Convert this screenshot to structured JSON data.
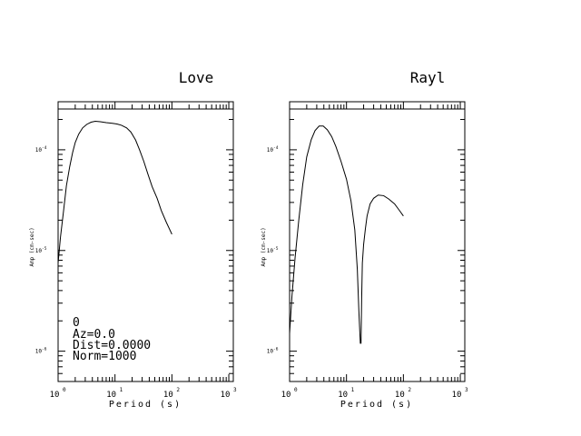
{
  "chart_data": [
    {
      "type": "line",
      "title": "Love",
      "xlabel": "Period (s)",
      "ylabel": "Amp (cm-sec)",
      "xscale": "log",
      "yscale": "log",
      "xlim": [
        1,
        1200
      ],
      "ylim": [
        5e-07,
        0.0003
      ],
      "xticks": [
        {
          "value": 1,
          "base": "10",
          "exp": "0"
        },
        {
          "value": 10,
          "base": "10",
          "exp": "1"
        },
        {
          "value": 100,
          "base": "10",
          "exp": "2"
        },
        {
          "value": 1000,
          "base": "10",
          "exp": "3"
        }
      ],
      "yticks": [
        {
          "value": 1e-06,
          "base": "10",
          "exp": "-6"
        },
        {
          "value": 1e-05,
          "base": "10",
          "exp": "-5"
        },
        {
          "value": 0.0001,
          "base": "10",
          "exp": "-4"
        }
      ],
      "annotations": [
        "0",
        "Az=0.0",
        "Dist=0.0000",
        "Norm=1000"
      ],
      "series": [
        {
          "x": [
            1.0,
            1.1,
            1.25,
            1.4,
            1.6,
            1.8,
            2.0,
            2.3,
            2.7,
            3.2,
            3.8,
            4.5,
            5.5,
            7,
            9,
            11,
            13,
            16,
            19,
            23,
            27,
            32,
            38,
            45,
            55,
            65,
            80,
            100
          ],
          "y": [
            7.5e-06,
            1.35e-05,
            2.5e-05,
            4.4e-05,
            6.8e-05,
            9.4e-05,
            0.000118,
            0.000143,
            0.000165,
            0.000179,
            0.000188,
            0.000192,
            0.00019,
            0.000186,
            0.000183,
            0.00018,
            0.000175,
            0.000165,
            0.00015,
            0.000125,
            0.0001,
            7.7e-05,
            5.7e-05,
            4.3e-05,
            3.3e-05,
            2.5e-05,
            1.9e-05,
            1.45e-05
          ]
        }
      ]
    },
    {
      "type": "line",
      "title": "Rayl",
      "xlabel": "Period (s)",
      "ylabel": "Amp (cm-sec)",
      "xscale": "log",
      "yscale": "log",
      "xlim": [
        1,
        1200
      ],
      "ylim": [
        5e-07,
        0.0003
      ],
      "xticks": [
        {
          "value": 1,
          "base": "10",
          "exp": "0"
        },
        {
          "value": 10,
          "base": "10",
          "exp": "1"
        },
        {
          "value": 100,
          "base": "10",
          "exp": "2"
        },
        {
          "value": 1000,
          "base": "10",
          "exp": "3"
        }
      ],
      "yticks": [
        {
          "value": 1e-06,
          "base": "10",
          "exp": "-6"
        },
        {
          "value": 1e-05,
          "base": "10",
          "exp": "-5"
        },
        {
          "value": 0.0001,
          "base": "10",
          "exp": "-4"
        }
      ],
      "series": [
        {
          "x": [
            1.0,
            1.1,
            1.25,
            1.45,
            1.7,
            2.0,
            2.4,
            2.8,
            3.3,
            3.9,
            4.6,
            5.5,
            6.5,
            8,
            10,
            12,
            14,
            15.5,
            16.5,
            17.5,
            18,
            18.5,
            19,
            20,
            21.5,
            23,
            26,
            30,
            36,
            45,
            55,
            70,
            85,
            100
          ],
          "y": [
            1.5e-06,
            3.5e-06,
            8.5e-06,
            2e-05,
            4.5e-05,
            8.5e-05,
            0.000126,
            0.000155,
            0.000172,
            0.000172,
            0.000158,
            0.000135,
            0.000108,
            7.7e-05,
            5.1e-05,
            3.1e-05,
            1.6e-05,
            6.5e-06,
            2.5e-06,
            1.2e-06,
            1.2e-06,
            3.5e-06,
            7.5e-06,
            1.15e-05,
            1.65e-05,
            2.2e-05,
            2.9e-05,
            3.3e-05,
            3.55e-05,
            3.5e-05,
            3.25e-05,
            2.9e-05,
            2.5e-05,
            2.2e-05
          ]
        }
      ]
    }
  ]
}
